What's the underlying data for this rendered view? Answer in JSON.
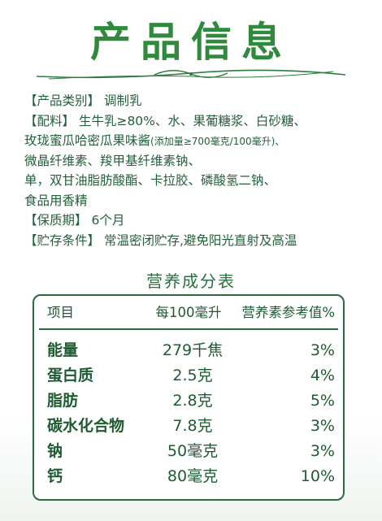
{
  "title": "产品信息",
  "info": {
    "category_label": "【产品类别】",
    "category_value": "调制乳",
    "ingredients_label": "【配料】",
    "ingredients_line1": "生牛乳≥80%、水、果葡糖浆、白砂糖、",
    "ingredients_line2a": "玫珑蜜瓜哈密瓜果味酱",
    "ingredients_line2b": "(添加量≥700毫克/100毫升)、",
    "ingredients_line3": "微晶纤维素、羧甲基纤维素钠、",
    "ingredients_line4": "单，双甘油脂肪酸酯、卡拉胶、磷酸氢二钠、",
    "ingredients_line5": "食品用香精",
    "shelf_label": "【保质期】",
    "shelf_value": "6个月",
    "storage_label": "【贮存条件】",
    "storage_value": "常温密闭贮存,避免阳光直射及高温"
  },
  "nutrition": {
    "title": "营养成分表",
    "headers": [
      "项目",
      "每100毫升",
      "营养素参考值%"
    ],
    "rows": [
      {
        "item": "能量",
        "amount": "279千焦",
        "nrv": "3%"
      },
      {
        "item": "蛋白质",
        "amount": "2.5克",
        "nrv": "4%"
      },
      {
        "item": "脂肪",
        "amount": "2.8克",
        "nrv": "5%"
      },
      {
        "item": "碳水化合物",
        "amount": "7.8克",
        "nrv": "3%"
      },
      {
        "item": "钠",
        "amount": "50毫克",
        "nrv": "3%"
      },
      {
        "item": "钙",
        "amount": "80毫克",
        "nrv": "10%"
      }
    ]
  },
  "colors": {
    "accent": "#2f8a3e",
    "text": "#24603a",
    "border": "#2c6a3d"
  }
}
